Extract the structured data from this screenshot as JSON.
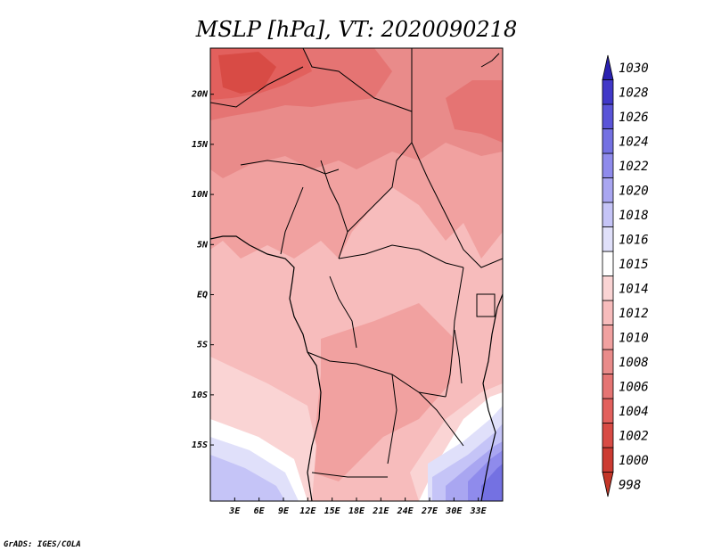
{
  "title": "MSLP [hPa], VT: 2020090218",
  "credit": "GrADS: IGES/COLA",
  "map": {
    "lat_range": [
      -20.6,
      24.6
    ],
    "lon_range": [
      0,
      36
    ],
    "lat_labels": [
      {
        "lat": 20,
        "label": "20N"
      },
      {
        "lat": 15,
        "label": "15N"
      },
      {
        "lat": 10,
        "label": "10N"
      },
      {
        "lat": 5,
        "label": "5N"
      },
      {
        "lat": 0,
        "label": "EQ"
      },
      {
        "lat": -5,
        "label": "5S"
      },
      {
        "lat": -10,
        "label": "10S"
      },
      {
        "lat": -15,
        "label": "15S"
      }
    ],
    "lon_labels": [
      {
        "lon": 3,
        "label": "3E"
      },
      {
        "lon": 6,
        "label": "6E"
      },
      {
        "lon": 9,
        "label": "9E"
      },
      {
        "lon": 12,
        "label": "12E"
      },
      {
        "lon": 15,
        "label": "15E"
      },
      {
        "lon": 18,
        "label": "18E"
      },
      {
        "lon": 21,
        "label": "21E"
      },
      {
        "lon": 24,
        "label": "24E"
      },
      {
        "lon": 27,
        "label": "27E"
      },
      {
        "lon": 30,
        "label": "30E"
      },
      {
        "lon": 33,
        "label": "33E"
      }
    ]
  },
  "colorbar": {
    "levels": [
      {
        "label": "998",
        "color": "#c33628"
      },
      {
        "label": "1000",
        "color": "#cc3b32"
      },
      {
        "label": "1002",
        "color": "#d84b45"
      },
      {
        "label": "1004",
        "color": "#e2605d"
      },
      {
        "label": "1006",
        "color": "#e57473"
      },
      {
        "label": "1008",
        "color": "#e98b8a"
      },
      {
        "label": "1010",
        "color": "#f1a1a0"
      },
      {
        "label": "1012",
        "color": "#f7bcbc"
      },
      {
        "label": "1014",
        "color": "#fad4d4"
      },
      {
        "label": "1015",
        "color": "#ffffff"
      },
      {
        "label": "1016",
        "color": "#e0e0fa"
      },
      {
        "label": "1018",
        "color": "#c5c4f7"
      },
      {
        "label": "1020",
        "color": "#a9a6f1"
      },
      {
        "label": "1022",
        "color": "#8f8bec"
      },
      {
        "label": "1024",
        "color": "#7471e2"
      },
      {
        "label": "1026",
        "color": "#5a54d8"
      },
      {
        "label": "1028",
        "color": "#4138c8"
      },
      {
        "label": "1030",
        "color": "#2a21b0"
      }
    ]
  }
}
